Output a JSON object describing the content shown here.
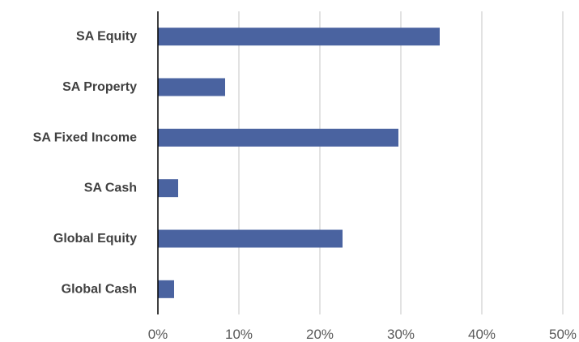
{
  "chart_data": {
    "type": "bar",
    "orientation": "horizontal",
    "categories": [
      "SA Equity",
      "SA Property",
      "SA Fixed Income",
      "SA Cash",
      "Global Equity",
      "Global Cash"
    ],
    "series": [
      {
        "values": [
          34.8,
          8.3,
          29.7,
          2.5,
          22.8,
          2.0
        ]
      }
    ],
    "xlim": [
      0,
      50
    ],
    "xticks": [
      0,
      10,
      20,
      30,
      40,
      50
    ],
    "tick_labels": [
      "0%",
      "10%",
      "20%",
      "30%",
      "40%",
      "50%"
    ],
    "grid": true,
    "bar_color": "#4a63a0",
    "grid_color": "#d9d9d9",
    "axis_color": "#000000",
    "title": "",
    "xlabel": "",
    "ylabel": ""
  }
}
